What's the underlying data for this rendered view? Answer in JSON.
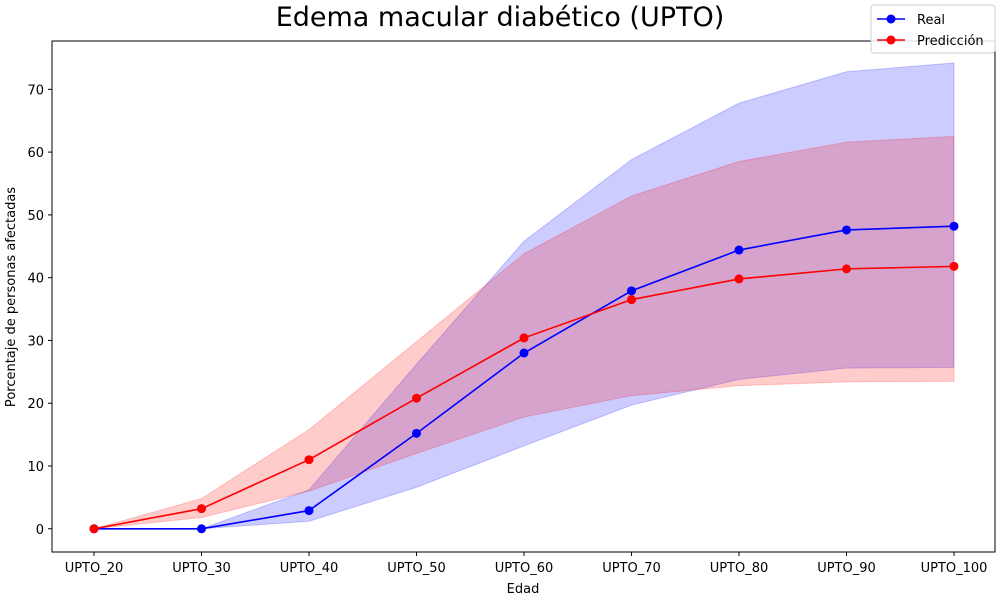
{
  "chart_data": {
    "type": "line",
    "title": "Edema macular diabético (UPTO)",
    "xlabel": "Edad",
    "ylabel": "Porcentaje de personas afectadas",
    "categories": [
      "UPTO_20",
      "UPTO_30",
      "UPTO_40",
      "UPTO_50",
      "UPTO_60",
      "UPTO_70",
      "UPTO_80",
      "UPTO_90",
      "UPTO_100"
    ],
    "ylim": [
      -3.7,
      77.7
    ],
    "yticks": [
      0,
      10,
      20,
      30,
      40,
      50,
      60,
      70
    ],
    "grid": false,
    "legend_position": "top-right",
    "series": [
      {
        "name": "Real",
        "color": "#0000ff",
        "values": [
          0,
          0,
          2.9,
          15.2,
          28.0,
          37.9,
          44.4,
          47.6,
          48.2
        ],
        "band_lower": [
          0,
          0,
          1.2,
          6.6,
          13.2,
          19.7,
          23.8,
          25.6,
          25.7
        ],
        "band_upper": [
          0,
          0,
          6.2,
          26.2,
          45.8,
          58.8,
          67.8,
          72.8,
          74.2
        ],
        "band_color": "#0000ff",
        "band_opacity": 0.2
      },
      {
        "name": "Predicción",
        "color": "#ff0000",
        "values": [
          0,
          3.2,
          11.0,
          20.8,
          30.4,
          36.5,
          39.8,
          41.4,
          41.8
        ],
        "band_lower": [
          0,
          1.8,
          6.0,
          12.0,
          17.8,
          21.2,
          22.8,
          23.4,
          23.5
        ],
        "band_upper": [
          0,
          4.8,
          15.8,
          29.8,
          43.8,
          53.0,
          58.5,
          61.6,
          62.5
        ],
        "band_color": "#ff0000",
        "band_opacity": 0.2
      }
    ]
  }
}
